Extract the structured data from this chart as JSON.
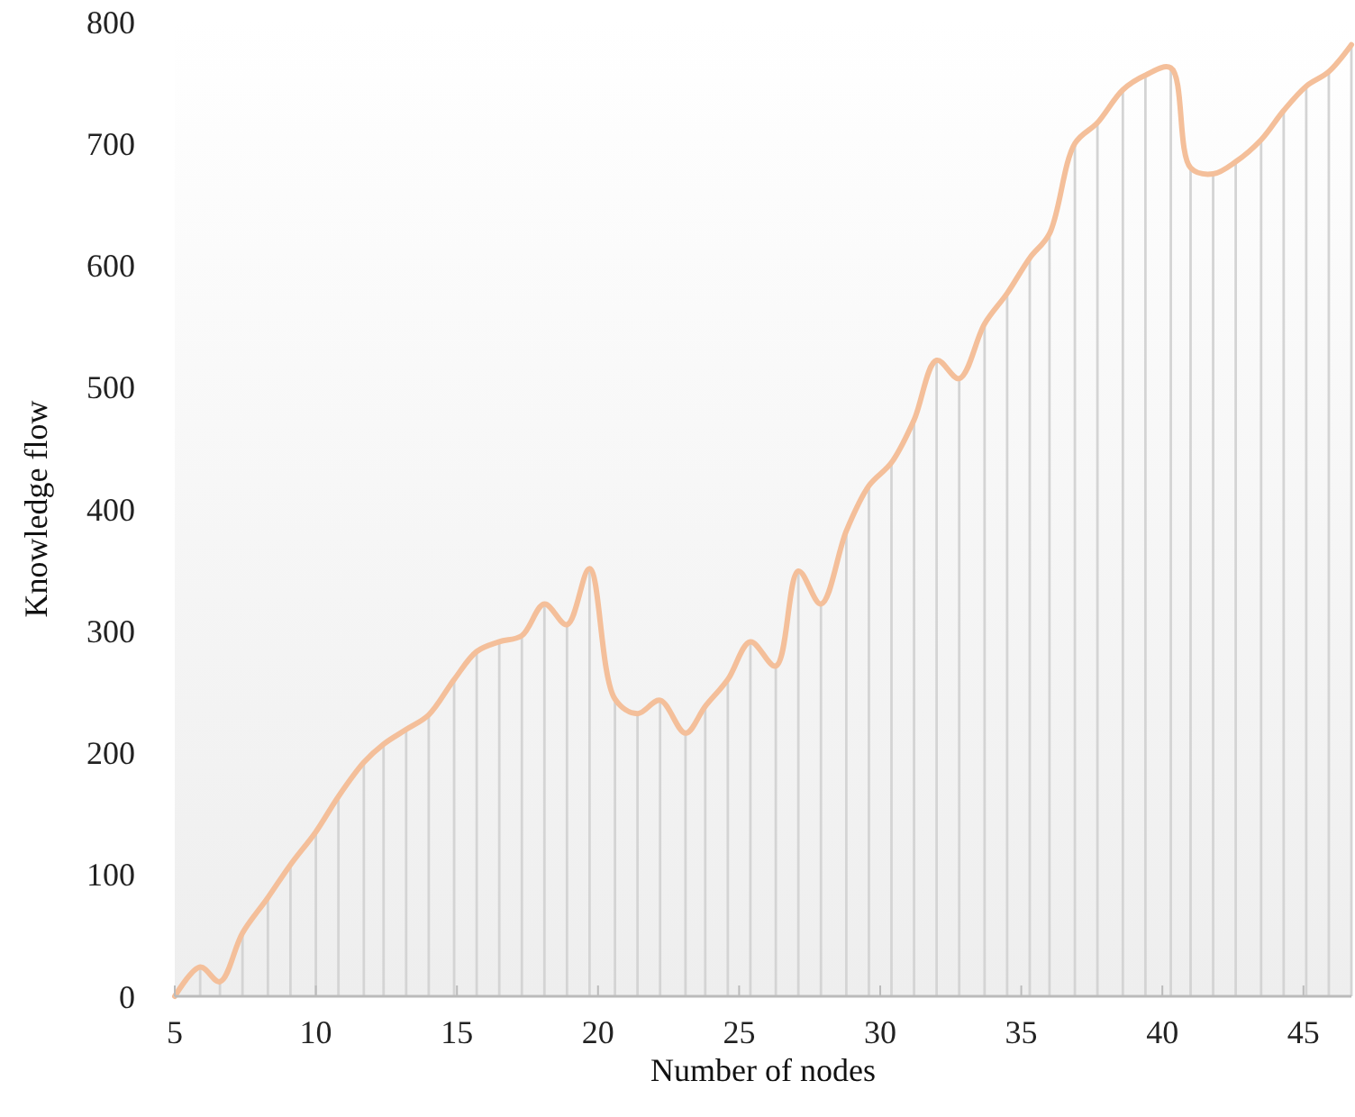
{
  "chart_data": {
    "type": "line",
    "xlabel": "Number of nodes",
    "ylabel": "Knowledge flow",
    "x": [
      5.0,
      5.9,
      6.6,
      7.4,
      8.3,
      9.1,
      10.0,
      10.8,
      11.7,
      12.4,
      13.2,
      14.0,
      14.9,
      15.7,
      16.5,
      17.3,
      18.1,
      18.9,
      19.7,
      20.6,
      21.4,
      22.2,
      23.1,
      23.8,
      24.6,
      25.4,
      26.3,
      27.1,
      27.9,
      28.8,
      29.6,
      30.4,
      31.2,
      32.0,
      32.8,
      33.7,
      34.5,
      35.3,
      36.0,
      36.9,
      37.7,
      38.6,
      39.4,
      40.3,
      41.0,
      41.8,
      42.6,
      43.5,
      44.3,
      45.1,
      45.9,
      46.7
    ],
    "series": [
      {
        "type": "bar",
        "color": "#d4d4d4",
        "values": [
          0,
          24,
          12,
          52,
          81,
          108,
          135,
          164,
          192,
          207,
          219,
          231,
          260,
          283,
          291,
          296,
          322,
          305,
          351,
          244,
          232,
          243,
          216,
          238,
          260,
          291,
          271,
          349,
          322,
          382,
          419,
          438,
          473,
          522,
          507,
          552,
          577,
          606,
          626,
          700,
          717,
          744,
          756,
          762,
          680,
          675,
          685,
          703,
          727,
          747,
          759,
          781
        ]
      },
      {
        "color": "#f4bf9a",
        "values": [
          0,
          24,
          12,
          52,
          81,
          108,
          135,
          164,
          192,
          207,
          219,
          231,
          260,
          283,
          291,
          296,
          322,
          305,
          351,
          244,
          232,
          243,
          216,
          238,
          260,
          291,
          271,
          349,
          322,
          382,
          419,
          438,
          473,
          522,
          507,
          552,
          577,
          606,
          626,
          700,
          717,
          744,
          756,
          762,
          680,
          675,
          685,
          703,
          727,
          747,
          759,
          781
        ]
      }
    ],
    "xlim": [
      5,
      46.7
    ],
    "xticks": [
      5,
      10,
      15,
      20,
      25,
      30,
      35,
      40,
      45
    ],
    "ylim": [
      0,
      800
    ],
    "yticks": [
      0,
      100,
      200,
      300,
      400,
      500,
      600,
      700,
      800
    ],
    "grid": false,
    "marker": "none",
    "line_style": "solid"
  }
}
